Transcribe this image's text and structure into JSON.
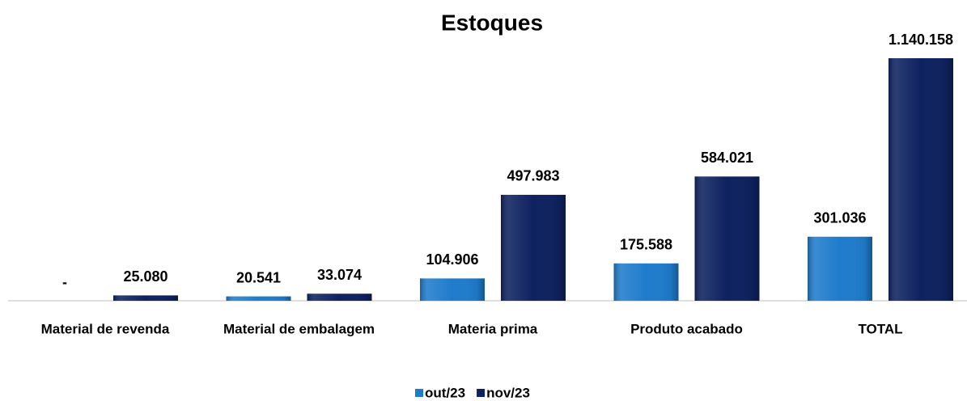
{
  "chart_data": {
    "type": "bar",
    "title": "Estoques",
    "categories": [
      "Material de revenda",
      "Material de embalagem",
      "Materia prima",
      "Produto acabado",
      "TOTAL"
    ],
    "series": [
      {
        "name": "out/23",
        "color": "#1f7ccc",
        "values": [
          0,
          20541,
          104906,
          175588,
          301036
        ],
        "value_labels": [
          "-",
          "20.541",
          "104.906",
          "175.588",
          "301.036"
        ]
      },
      {
        "name": "nov/23",
        "color": "#0e2260",
        "values": [
          25080,
          33074,
          497983,
          584021,
          1140158
        ],
        "value_labels": [
          "25.080",
          "33.074",
          "497.983",
          "584.021",
          "1.140.158"
        ]
      }
    ],
    "legend": "bottom"
  }
}
